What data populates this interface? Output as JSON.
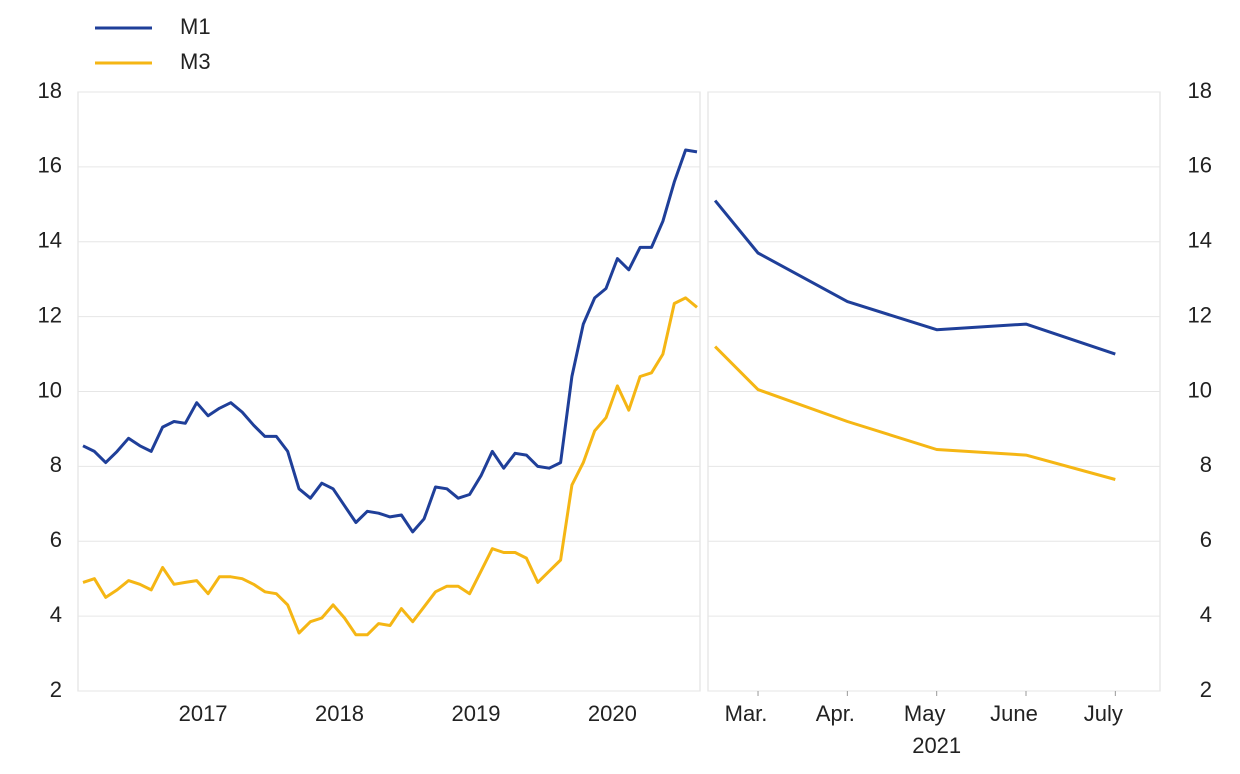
{
  "chart_data": [
    {
      "type": "line",
      "categories": [
        null,
        null,
        null,
        null,
        null,
        null,
        null,
        null,
        null,
        null,
        null,
        "2017",
        null,
        null,
        null,
        null,
        null,
        null,
        null,
        null,
        null,
        null,
        null,
        "2018",
        null,
        null,
        null,
        null,
        null,
        null,
        null,
        null,
        null,
        null,
        null,
        "2019",
        null,
        null,
        null,
        null,
        null,
        null,
        null,
        null,
        null,
        null,
        null,
        "2020",
        null,
        null,
        null,
        null,
        null,
        null,
        null
      ],
      "series": [
        {
          "name": "M1",
          "color": "#1f3f99",
          "values": [
            8.55,
            8.4,
            8.1,
            8.4,
            8.75,
            8.55,
            8.4,
            9.05,
            9.2,
            9.15,
            9.7,
            9.35,
            9.55,
            9.7,
            9.45,
            9.1,
            8.8,
            8.8,
            8.4,
            7.4,
            7.15,
            7.55,
            7.4,
            6.95,
            6.5,
            6.8,
            6.75,
            6.65,
            6.7,
            6.25,
            6.6,
            7.45,
            7.4,
            7.15,
            7.25,
            7.75,
            8.4,
            7.95,
            8.35,
            8.3,
            8.0,
            7.95,
            8.1,
            10.4,
            11.8,
            12.5,
            12.75,
            13.55,
            13.25,
            13.85,
            13.85,
            14.55,
            15.6,
            16.45,
            16.4
          ]
        },
        {
          "name": "M3",
          "color": "#f5b614",
          "values": [
            4.9,
            5.0,
            4.5,
            4.7,
            4.95,
            4.85,
            4.7,
            5.3,
            4.85,
            4.9,
            4.95,
            4.6,
            5.05,
            5.05,
            5.0,
            4.85,
            4.65,
            4.6,
            4.3,
            3.55,
            3.85,
            3.95,
            4.3,
            3.95,
            3.5,
            3.5,
            3.8,
            3.75,
            4.2,
            3.85,
            4.25,
            4.65,
            4.8,
            4.8,
            4.6,
            5.2,
            5.8,
            5.7,
            5.7,
            5.55,
            4.9,
            5.2,
            5.5,
            7.5,
            8.1,
            8.95,
            9.3,
            10.15,
            9.5,
            10.4,
            10.5,
            11.0,
            12.35,
            12.5,
            12.25
          ]
        }
      ],
      "ylim": [
        2,
        18
      ],
      "yticks": [
        2,
        4,
        6,
        8,
        10,
        12,
        14,
        16,
        18
      ],
      "grid": true,
      "yaxis": "left",
      "legend": "top-left"
    },
    {
      "type": "line",
      "x": [
        2.52,
        3,
        4,
        5,
        6,
        7
      ],
      "xlim": [
        2.44,
        7.5
      ],
      "xticks": [
        {
          "value": 3,
          "label": "Mar."
        },
        {
          "value": 4,
          "label": "Apr."
        },
        {
          "value": 5,
          "label": "May"
        },
        {
          "value": 6,
          "label": "June"
        },
        {
          "value": 7,
          "label": "July"
        }
      ],
      "annotation": "2021",
      "series": [
        {
          "color": "#1f3f99",
          "values": [
            15.1,
            13.7,
            12.4,
            11.65,
            11.8,
            11.0
          ]
        },
        {
          "color": "#f5b614",
          "values": [
            11.2,
            10.05,
            9.2,
            8.45,
            8.3,
            7.65
          ]
        }
      ],
      "ylim": [
        2,
        18
      ],
      "yticks": [
        2,
        4,
        6,
        8,
        10,
        12,
        14,
        16,
        18
      ],
      "grid": true,
      "yaxis": "right"
    }
  ]
}
